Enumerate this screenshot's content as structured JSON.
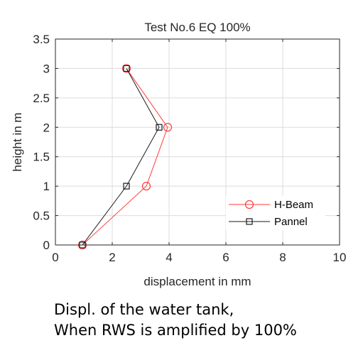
{
  "chart_data": {
    "type": "line",
    "title": "Test No.6 EQ 100%",
    "xlabel": "displacement in mm",
    "ylabel": "height in m",
    "xlim": [
      0,
      10
    ],
    "ylim": [
      0,
      3.5
    ],
    "xticks": [
      "0",
      "2",
      "4",
      "6",
      "8",
      "10"
    ],
    "yticks": [
      "0",
      "0.5",
      "1",
      "1.5",
      "2",
      "2.5",
      "3",
      "3.5"
    ],
    "grid": true,
    "legend_position": "lower-right",
    "series": [
      {
        "name": "H-Beam",
        "marker": "circle",
        "color": "#ff3b3b",
        "points": [
          {
            "x": 0.95,
            "y": 0
          },
          {
            "x": 3.2,
            "y": 1
          },
          {
            "x": 3.95,
            "y": 2
          },
          {
            "x": 2.5,
            "y": 3
          }
        ]
      },
      {
        "name": "Pannel",
        "marker": "square",
        "color": "#1a1a1a",
        "points": [
          {
            "x": 0.95,
            "y": 0
          },
          {
            "x": 2.5,
            "y": 1
          },
          {
            "x": 3.65,
            "y": 2
          },
          {
            "x": 2.5,
            "y": 3
          }
        ]
      }
    ]
  },
  "caption": {
    "line1": "Displ. of the water tank,",
    "line2": "When RWS is amplified by 100%"
  }
}
